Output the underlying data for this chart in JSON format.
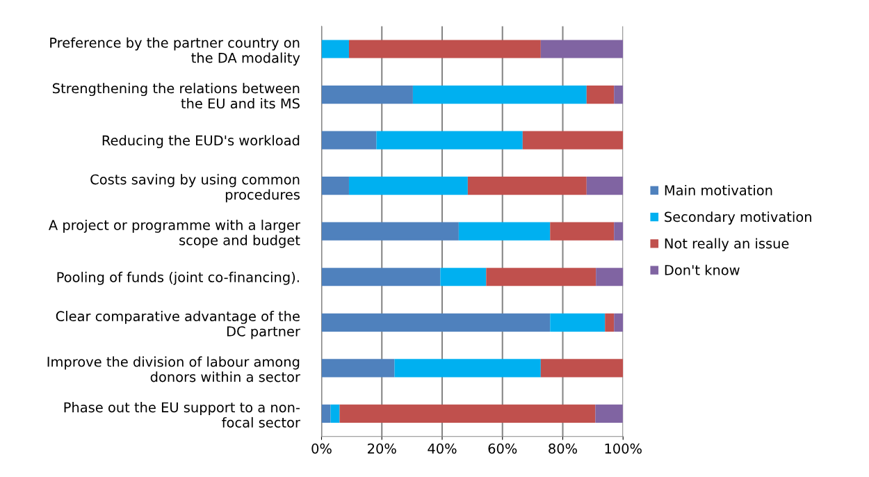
{
  "chart_data": {
    "type": "bar",
    "orientation": "horizontal",
    "stacked": true,
    "categories": [
      "Preference by the partner country on\nthe DA modality",
      "Strengthening the relations between\nthe EU and its MS",
      "Reducing the EUD's workload",
      "Costs saving by using common\nprocedures",
      "A project or programme with a larger\nscope and budget",
      "Pooling of funds (joint co-financing).",
      "Clear comparative advantage of the\nDC partner",
      "Improve the division of labour among\ndonors within a sector",
      "Phase out the EU support to a non-\nfocal sector"
    ],
    "series": [
      {
        "name": "Main motivation",
        "color": "#4f81bd",
        "values": [
          0,
          30.3,
          18.2,
          9.1,
          45.5,
          39.4,
          75.8,
          24.2,
          3.0
        ]
      },
      {
        "name": "Secondary motivation",
        "color": "#00b0f0",
        "values": [
          9.1,
          57.6,
          48.5,
          39.4,
          30.3,
          15.2,
          18.2,
          48.5,
          3.0
        ]
      },
      {
        "name": "Not really an issue",
        "color": "#c0504d",
        "values": [
          63.6,
          9.1,
          33.3,
          39.4,
          21.2,
          36.4,
          3.0,
          27.3,
          84.8
        ]
      },
      {
        "name": "Don't know",
        "color": "#8064a2",
        "values": [
          27.3,
          3.0,
          0,
          12.1,
          3.0,
          9.1,
          3.0,
          0,
          9.1
        ]
      }
    ],
    "xlim": [
      0,
      100
    ],
    "xticks": [
      {
        "value": 0,
        "label": "0%"
      },
      {
        "value": 20,
        "label": "20%"
      },
      {
        "value": 40,
        "label": "40%"
      },
      {
        "value": 60,
        "label": "60%"
      },
      {
        "value": 80,
        "label": "80%"
      },
      {
        "value": 100,
        "label": "100%"
      }
    ],
    "grid": "x",
    "legend": "right"
  }
}
